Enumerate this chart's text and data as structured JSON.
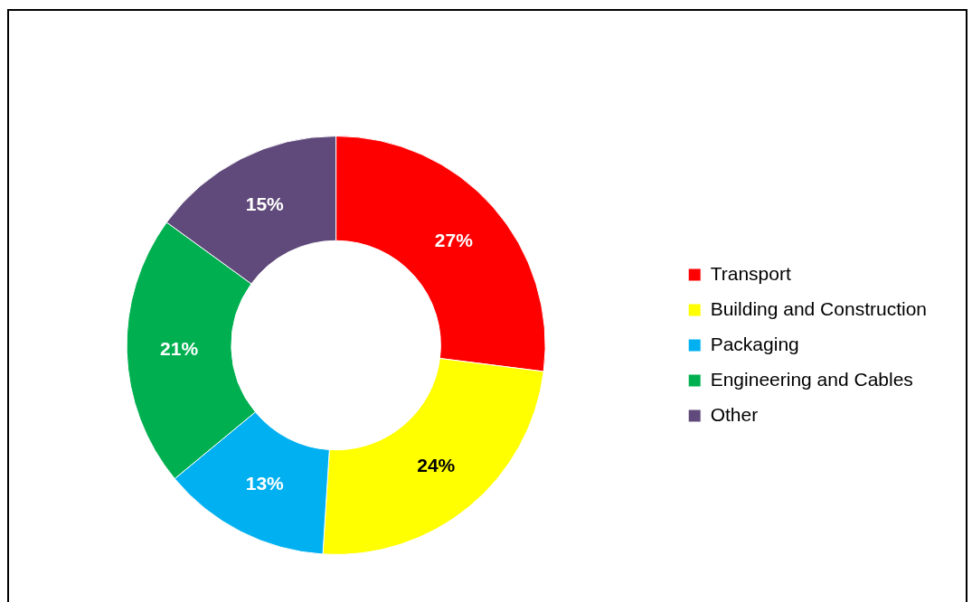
{
  "chart_data": {
    "type": "donut",
    "categories": [
      "Transport",
      "Building and Construction",
      "Packaging",
      "Engineering and Cables",
      "Other"
    ],
    "values": [
      27,
      24,
      13,
      21,
      15
    ],
    "colors": [
      "#ff0000",
      "#ffff00",
      "#00b0f0",
      "#00b050",
      "#604a7b"
    ],
    "value_labels": [
      "27%",
      "24%",
      "13%",
      "21%",
      "15%"
    ],
    "legend": "right"
  }
}
